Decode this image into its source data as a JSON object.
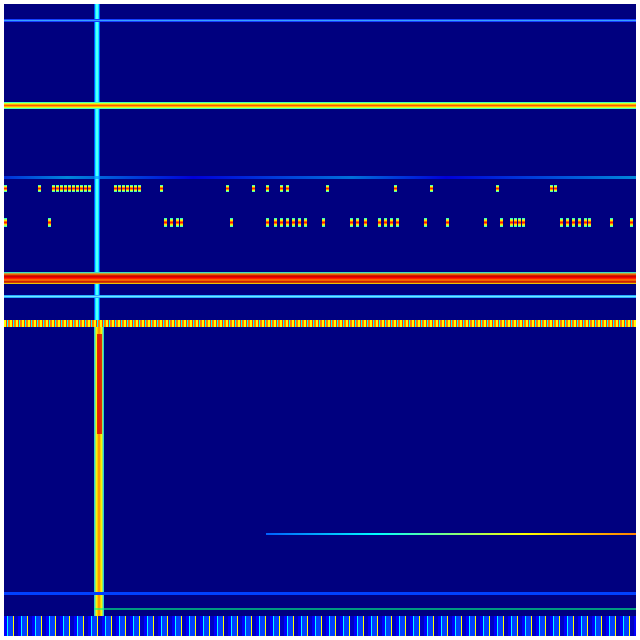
{
  "image": {
    "kind": "spectrogram",
    "colormap": "jet",
    "colors": {
      "background": "#00007f",
      "low": "#0000ff",
      "mid": "#00ffff",
      "high": "#ffff00",
      "peak": "#ff0000",
      "frame": "#ffffff"
    }
  }
}
